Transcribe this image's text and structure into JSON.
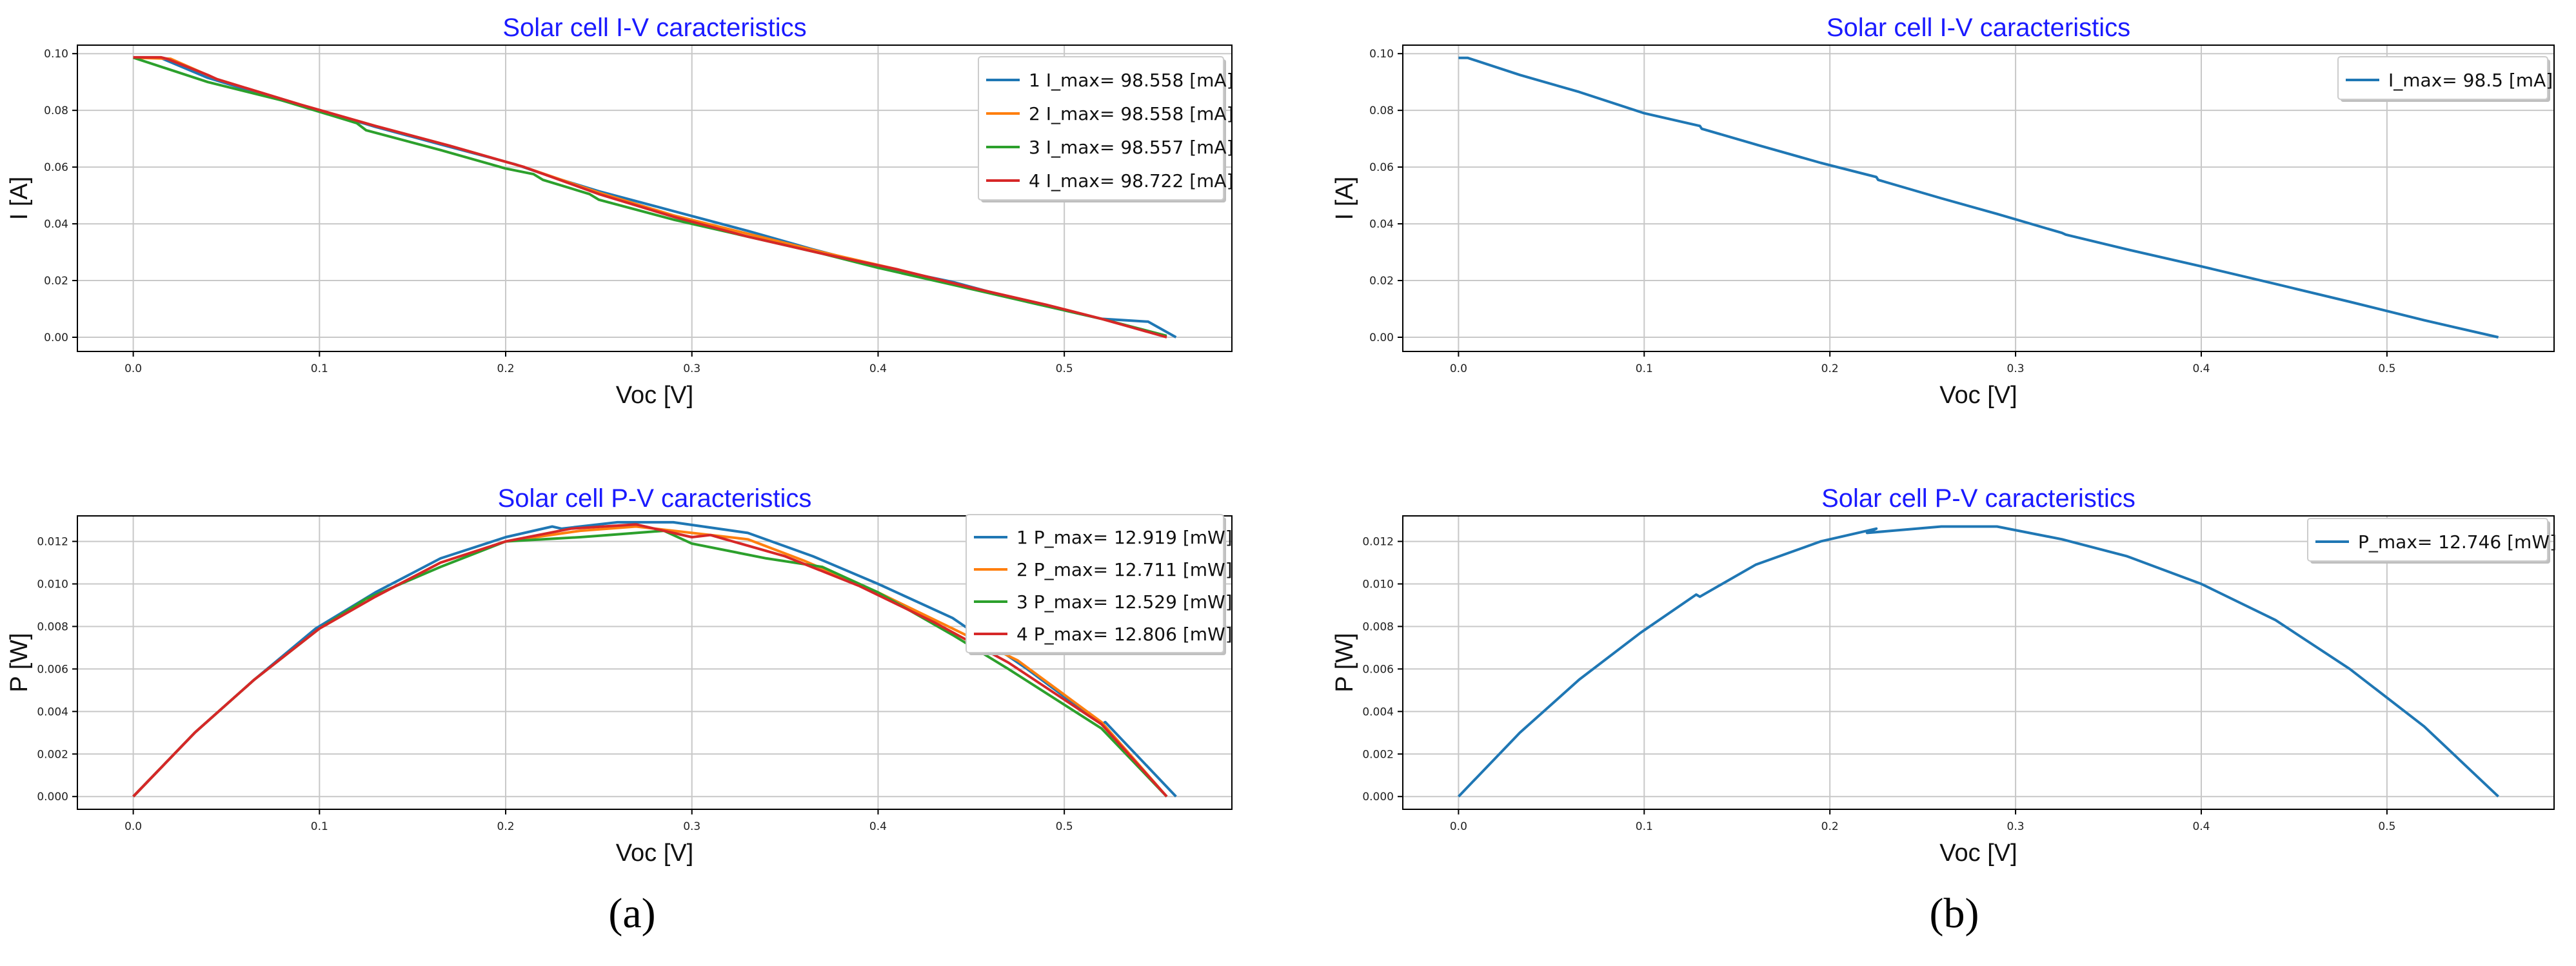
{
  "panel_labels": [
    "(a)",
    "(b)"
  ],
  "colors": {
    "title": "#1a1aff",
    "series": [
      "#1f77b4",
      "#ff7f0e",
      "#2ca02c",
      "#d62728"
    ],
    "grid": "#c8c8c8",
    "axes": "#000000"
  },
  "chart_data": [
    {
      "type": "line",
      "title": "Solar cell I-V caracteristics",
      "xlabel": "Voc [V]",
      "ylabel": "I [A]",
      "xlim": [
        -0.03,
        0.59
      ],
      "ylim": [
        -0.005,
        0.103
      ],
      "xticks": [
        0.0,
        0.1,
        0.2,
        0.3,
        0.4,
        0.5
      ],
      "xtick_labels": [
        "0.0",
        "0.1",
        "0.2",
        "0.3",
        "0.4",
        "0.5"
      ],
      "yticks": [
        0.0,
        0.02,
        0.04,
        0.06,
        0.08,
        0.1
      ],
      "ytick_labels": [
        "0.00",
        "0.02",
        "0.04",
        "0.06",
        "0.08",
        "0.10"
      ],
      "grid": true,
      "legend_position": "top-right",
      "series": [
        {
          "name": "1 I_max= 98.558 [mA]",
          "x": [
            0.0,
            0.015,
            0.04,
            0.08,
            0.125,
            0.13,
            0.165,
            0.205,
            0.225,
            0.25,
            0.29,
            0.33,
            0.365,
            0.4,
            0.44,
            0.48,
            0.52,
            0.545,
            0.56
          ],
          "y": [
            0.0986,
            0.0984,
            0.0915,
            0.0835,
            0.0752,
            0.0742,
            0.068,
            0.061,
            0.0565,
            0.0515,
            0.0445,
            0.0375,
            0.031,
            0.025,
            0.0195,
            0.0125,
            0.0065,
            0.0055,
            0.0
          ]
        },
        {
          "name": "2 I_max= 98.558 [mA]",
          "x": [
            0.0,
            0.02,
            0.045,
            0.09,
            0.13,
            0.17,
            0.21,
            0.25,
            0.29,
            0.33,
            0.37,
            0.41,
            0.45,
            0.49,
            0.52,
            0.55
          ],
          "y": [
            0.0986,
            0.0982,
            0.091,
            0.082,
            0.0745,
            0.0675,
            0.06,
            0.051,
            0.043,
            0.0365,
            0.03,
            0.024,
            0.0175,
            0.0115,
            0.0065,
            0.001
          ]
        },
        {
          "name": "3 I_max= 98.557 [mA]",
          "x": [
            0.0,
            0.04,
            0.08,
            0.12,
            0.125,
            0.165,
            0.2,
            0.215,
            0.22,
            0.245,
            0.25,
            0.29,
            0.33,
            0.37,
            0.4,
            0.44,
            0.48,
            0.52,
            0.555
          ],
          "y": [
            0.0986,
            0.09,
            0.0835,
            0.0755,
            0.073,
            0.066,
            0.0595,
            0.0575,
            0.0555,
            0.0505,
            0.0485,
            0.0415,
            0.0355,
            0.0295,
            0.0245,
            0.0185,
            0.0125,
            0.0065,
            0.0005
          ]
        },
        {
          "name": "4 I_max= 98.722 [mA]",
          "x": [
            0.0,
            0.015,
            0.018,
            0.04,
            0.045,
            0.09,
            0.13,
            0.17,
            0.21,
            0.25,
            0.29,
            0.33,
            0.37,
            0.41,
            0.45,
            0.49,
            0.52,
            0.555
          ],
          "y": [
            0.0987,
            0.0987,
            0.0982,
            0.0925,
            0.091,
            0.082,
            0.0745,
            0.0675,
            0.06,
            0.0505,
            0.0425,
            0.0355,
            0.0295,
            0.024,
            0.0175,
            0.0115,
            0.0065,
            0.0
          ]
        }
      ]
    },
    {
      "type": "line",
      "title": "Solar cell P-V caracteristics",
      "xlabel": "Voc [V]",
      "ylabel": "P [W]",
      "xlim": [
        -0.03,
        0.59
      ],
      "ylim": [
        -0.0006,
        0.0132
      ],
      "xticks": [
        0.0,
        0.1,
        0.2,
        0.3,
        0.4,
        0.5
      ],
      "xtick_labels": [
        "0.0",
        "0.1",
        "0.2",
        "0.3",
        "0.4",
        "0.5"
      ],
      "yticks": [
        0.0,
        0.002,
        0.004,
        0.006,
        0.008,
        0.01,
        0.012
      ],
      "ytick_labels": [
        "0.000",
        "0.002",
        "0.004",
        "0.006",
        "0.008",
        "0.010",
        "0.012"
      ],
      "grid": true,
      "legend_position": "top-right",
      "series": [
        {
          "name": "1 P_max= 12.919 [mW]",
          "x": [
            0.0,
            0.033,
            0.065,
            0.098,
            0.13,
            0.165,
            0.2,
            0.225,
            0.23,
            0.26,
            0.29,
            0.33,
            0.365,
            0.4,
            0.44,
            0.48,
            0.52,
            0.522,
            0.56
          ],
          "y": [
            0.0,
            0.003,
            0.0055,
            0.0079,
            0.0096,
            0.0112,
            0.0122,
            0.0127,
            0.0126,
            0.0129,
            0.0129,
            0.0124,
            0.0113,
            0.01,
            0.0084,
            0.006,
            0.0034,
            0.0035,
            0.0
          ]
        },
        {
          "name": "2 P_max= 12.711 [mW]",
          "x": [
            0.0,
            0.033,
            0.065,
            0.1,
            0.13,
            0.165,
            0.2,
            0.24,
            0.27,
            0.3,
            0.33,
            0.36,
            0.4,
            0.44,
            0.475,
            0.52,
            0.555
          ],
          "y": [
            0.0,
            0.003,
            0.0055,
            0.0079,
            0.0094,
            0.011,
            0.012,
            0.0125,
            0.0127,
            0.0124,
            0.0121,
            0.0111,
            0.0096,
            0.0079,
            0.0064,
            0.0035,
            0.0
          ]
        },
        {
          "name": "3 P_max= 12.529 [mW]",
          "x": [
            0.0,
            0.033,
            0.065,
            0.1,
            0.125,
            0.165,
            0.2,
            0.24,
            0.255,
            0.285,
            0.3,
            0.34,
            0.37,
            0.4,
            0.44,
            0.47,
            0.52,
            0.555
          ],
          "y": [
            0.0,
            0.003,
            0.0055,
            0.0079,
            0.0093,
            0.0108,
            0.012,
            0.0122,
            0.0123,
            0.0125,
            0.0119,
            0.0112,
            0.0108,
            0.0096,
            0.0076,
            0.006,
            0.0032,
            0.0
          ]
        },
        {
          "name": "4 P_max= 12.806 [mW]",
          "x": [
            0.0,
            0.033,
            0.065,
            0.1,
            0.13,
            0.165,
            0.2,
            0.235,
            0.27,
            0.3,
            0.31,
            0.35,
            0.39,
            0.43,
            0.47,
            0.52,
            0.555
          ],
          "y": [
            0.0,
            0.003,
            0.0055,
            0.0079,
            0.0094,
            0.011,
            0.012,
            0.0126,
            0.0128,
            0.0122,
            0.0123,
            0.0113,
            0.0099,
            0.0082,
            0.0063,
            0.0034,
            0.0
          ]
        }
      ]
    },
    {
      "type": "line",
      "title": "Solar cell I-V caracteristics",
      "xlabel": "Voc [V]",
      "ylabel": "I [A]",
      "xlim": [
        -0.03,
        0.59
      ],
      "ylim": [
        -0.005,
        0.103
      ],
      "xticks": [
        0.0,
        0.1,
        0.2,
        0.3,
        0.4,
        0.5
      ],
      "xtick_labels": [
        "0.0",
        "0.1",
        "0.2",
        "0.3",
        "0.4",
        "0.5"
      ],
      "yticks": [
        0.0,
        0.02,
        0.04,
        0.06,
        0.08,
        0.1
      ],
      "ytick_labels": [
        "0.00",
        "0.02",
        "0.04",
        "0.06",
        "0.08",
        "0.10"
      ],
      "grid": true,
      "legend_position": "top-right",
      "series": [
        {
          "name": "I_max= 98.5 [mA]",
          "x": [
            0.0,
            0.005,
            0.033,
            0.065,
            0.1,
            0.13,
            0.131,
            0.16,
            0.161,
            0.195,
            0.225,
            0.226,
            0.26,
            0.29,
            0.325,
            0.327,
            0.36,
            0.4,
            0.44,
            0.48,
            0.52,
            0.56
          ],
          "y": [
            0.0985,
            0.0985,
            0.0925,
            0.0865,
            0.079,
            0.0745,
            0.0735,
            0.068,
            0.0678,
            0.0615,
            0.0565,
            0.0555,
            0.049,
            0.0435,
            0.0368,
            0.0362,
            0.031,
            0.025,
            0.0188,
            0.0125,
            0.006,
            0.0
          ]
        }
      ]
    },
    {
      "type": "line",
      "title": "Solar cell P-V caracteristics",
      "xlabel": "Voc [V]",
      "ylabel": "P [W]",
      "xlim": [
        -0.03,
        0.59
      ],
      "ylim": [
        -0.0006,
        0.0132
      ],
      "xticks": [
        0.0,
        0.1,
        0.2,
        0.3,
        0.4,
        0.5
      ],
      "xtick_labels": [
        "0.0",
        "0.1",
        "0.2",
        "0.3",
        "0.4",
        "0.5"
      ],
      "yticks": [
        0.0,
        0.002,
        0.004,
        0.006,
        0.008,
        0.01,
        0.012
      ],
      "ytick_labels": [
        "0.000",
        "0.002",
        "0.004",
        "0.006",
        "0.008",
        "0.010",
        "0.012"
      ],
      "grid": true,
      "legend_position": "top-right",
      "series": [
        {
          "name": "P_max= 12.746 [mW]",
          "x": [
            0.0,
            0.033,
            0.065,
            0.098,
            0.128,
            0.13,
            0.16,
            0.195,
            0.225,
            0.22,
            0.26,
            0.29,
            0.325,
            0.36,
            0.4,
            0.44,
            0.48,
            0.52,
            0.56
          ],
          "y": [
            0.0,
            0.003,
            0.0055,
            0.0077,
            0.0095,
            0.0094,
            0.0109,
            0.012,
            0.0126,
            0.0124,
            0.0127,
            0.0127,
            0.0121,
            0.0113,
            0.01,
            0.0083,
            0.006,
            0.0033,
            0.0
          ]
        }
      ]
    }
  ]
}
